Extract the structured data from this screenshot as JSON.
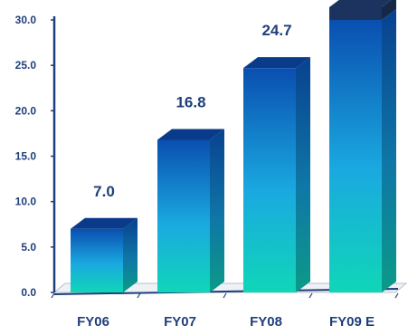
{
  "chart_data": {
    "type": "bar",
    "categories": [
      "FY06",
      "FY07",
      "FY08",
      "FY09 E"
    ],
    "values": [
      7.0,
      16.8,
      24.7,
      30.0
    ],
    "data_labels": [
      "7.0",
      "16.8",
      "24.7",
      ""
    ],
    "yticks": [
      "0.0",
      "5.0",
      "10.0",
      "15.0",
      "20.0",
      "25.0",
      "30.0"
    ],
    "ylim": [
      0,
      30
    ],
    "title": "",
    "xlabel": "",
    "ylabel": "",
    "grid": false,
    "legend": "none",
    "colors": {
      "bar_top": "#0a4fb0",
      "bar_mid": "#1aa9e0",
      "bar_bottom": "#10d6b8",
      "bar_side": "#0d6e8a",
      "bar_cap": "#0a3a8a",
      "overflow_cap": "#1c3360",
      "axis": "#1f3f7a",
      "text": "#1f3f7a"
    }
  }
}
